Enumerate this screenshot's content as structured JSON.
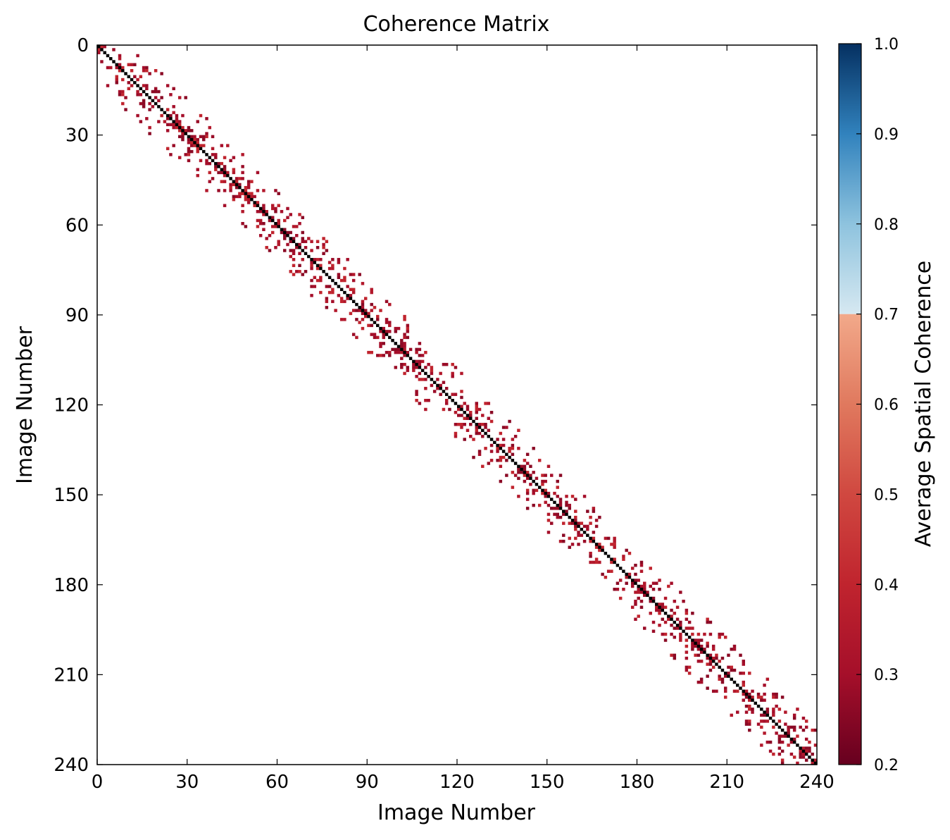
{
  "chart_data": {
    "type": "heatmap",
    "title": "Coherence Matrix",
    "xlabel": "Image Number",
    "ylabel": "Image Number",
    "xlim": [
      0,
      240
    ],
    "ylim": [
      240,
      0
    ],
    "x_ticks": [
      0,
      30,
      60,
      90,
      120,
      150,
      180,
      210,
      240
    ],
    "y_ticks": [
      0,
      30,
      60,
      90,
      120,
      150,
      180,
      210,
      240
    ],
    "n_images": 240,
    "diagonal_value": 1.0,
    "band_half_width_images": 12,
    "off_diagonal_value_range": [
      0.25,
      0.35
    ],
    "colorbar": {
      "label": "Average Spatial Coherence",
      "min": 0.2,
      "max": 1.0,
      "ticks": [
        0.2,
        0.3,
        0.4,
        0.5,
        0.6,
        0.7,
        0.8,
        0.9,
        1.0
      ],
      "tick_labels": [
        "0.2",
        "0.3",
        "0.4",
        "0.5",
        "0.6",
        "0.7",
        "0.8",
        "0.9",
        "1.0"
      ],
      "colors": {
        "0.2": "#67001f",
        "0.3": "#a50f2a",
        "0.4": "#c0242e",
        "0.5": "#d04840",
        "0.6": "#e0795e",
        "0.7": "#f2a98a",
        "0.7+": "#d6e8f1",
        "0.8": "#8ec3de",
        "0.9": "#3182bd",
        "1.0": "#053061"
      }
    },
    "grid": false
  }
}
